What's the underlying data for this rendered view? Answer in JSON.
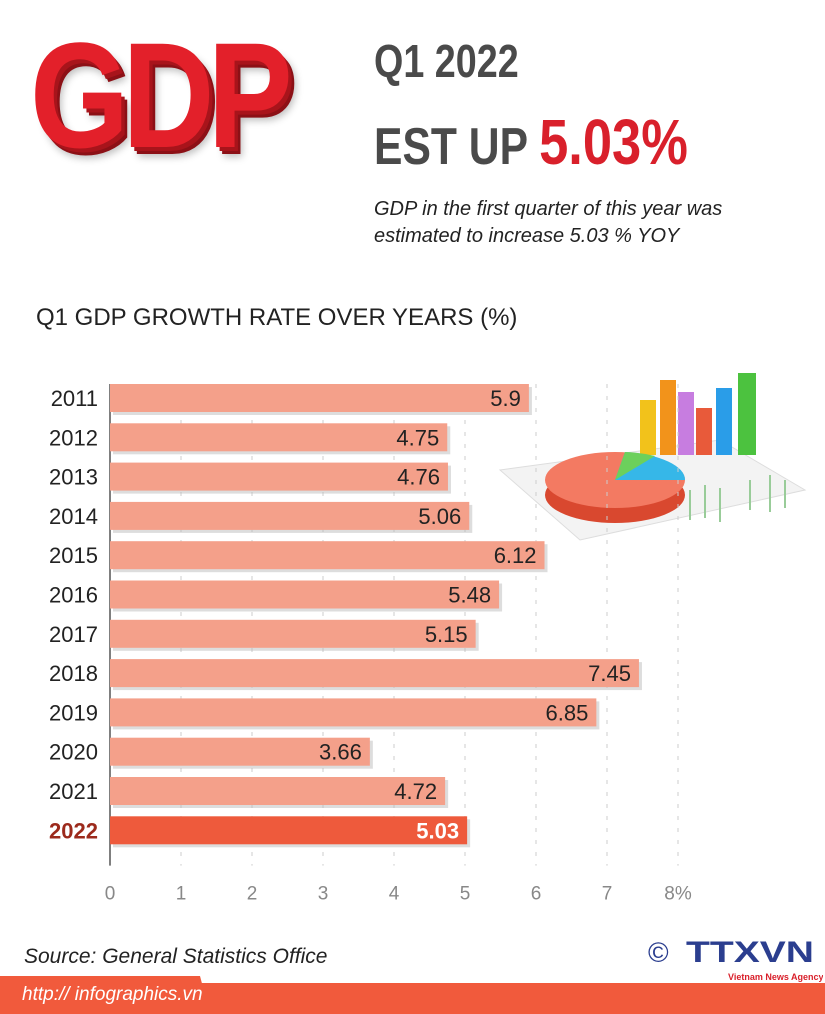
{
  "header": {
    "logo_text": "GDP",
    "line1": "Q1 2022",
    "line2_prefix": "EST UP",
    "line2_value": "5.03%",
    "subtitle": "GDP in the first quarter of this year was estimated to increase 5.03 % YOY"
  },
  "chart_data": {
    "type": "bar",
    "orientation": "horizontal",
    "title": "Q1 GDP GROWTH RATE OVER YEARS (%)",
    "categories": [
      "2011",
      "2012",
      "2013",
      "2014",
      "2015",
      "2016",
      "2017",
      "2018",
      "2019",
      "2020",
      "2021",
      "2022"
    ],
    "values": [
      5.9,
      4.75,
      4.76,
      5.06,
      6.12,
      5.48,
      5.15,
      7.45,
      6.85,
      3.66,
      4.72,
      5.03
    ],
    "labels": [
      "5.9",
      "4.75",
      "4.76",
      "5.06",
      "6.12",
      "5.48",
      "5.15",
      "7.45",
      "6.85",
      "3.66",
      "4.72",
      "5.03"
    ],
    "xlim": [
      0,
      8
    ],
    "xticks": [
      "0",
      "1",
      "2",
      "3",
      "4",
      "5",
      "6",
      "7",
      "8%"
    ],
    "grid": true,
    "highlight": "2022",
    "colors": {
      "bar": "#f4a08a",
      "highlight_bar": "#ee5a3c",
      "highlight_label": "#9c2a1c"
    }
  },
  "footer": {
    "source": "Source: General Statistics Office",
    "url": "http:// infographics.vn",
    "copyright": "©",
    "agency_logo": "TTXVN",
    "agency_name": "Vietnam News Agency"
  }
}
